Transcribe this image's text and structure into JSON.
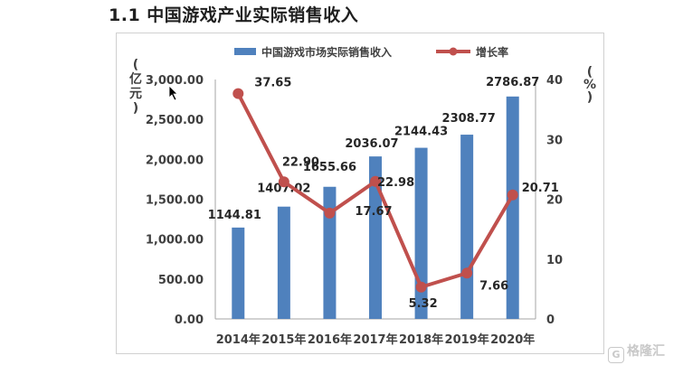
{
  "page": {
    "title": "1.1 中国游戏产业实际销售收入",
    "watermark": "格隆汇"
  },
  "chart_data": {
    "type": "bar",
    "categories": [
      "2014年",
      "2015年",
      "2016年",
      "2017年",
      "2018年",
      "2019年",
      "2020年"
    ],
    "series": [
      {
        "name": "中国游戏市场实际销售收入",
        "type": "bar",
        "axis": "left",
        "color": "#4f81bd",
        "values": [
          1144.81,
          1407.02,
          1655.66,
          2036.07,
          2144.43,
          2308.77,
          2786.87
        ],
        "labels": [
          "1144.81",
          "1407.02",
          "1655.66",
          "2036.07",
          "2144.43",
          "2308.77",
          "2786.87"
        ]
      },
      {
        "name": "增长率",
        "type": "line",
        "axis": "right",
        "color": "#c0504d",
        "values": [
          37.65,
          22.9,
          17.67,
          22.98,
          5.32,
          7.66,
          20.71
        ],
        "labels": [
          "37.65",
          "22.90",
          "17.67",
          "22.98",
          "5.32",
          "7.66",
          "20.71"
        ]
      }
    ],
    "ylabel_left": "亿元",
    "ylabel_right": "%",
    "ylim_left": [
      0,
      3000
    ],
    "ylim_right": [
      0,
      40
    ],
    "yticks_left": [
      "0.00",
      "500.00",
      "1,000.00",
      "1,500.00",
      "2,000.00",
      "2,500.00",
      "3,000.00"
    ],
    "yticks_right": [
      "0",
      "10",
      "20",
      "30",
      "40"
    ],
    "legend_position": "top",
    "grid": false
  }
}
